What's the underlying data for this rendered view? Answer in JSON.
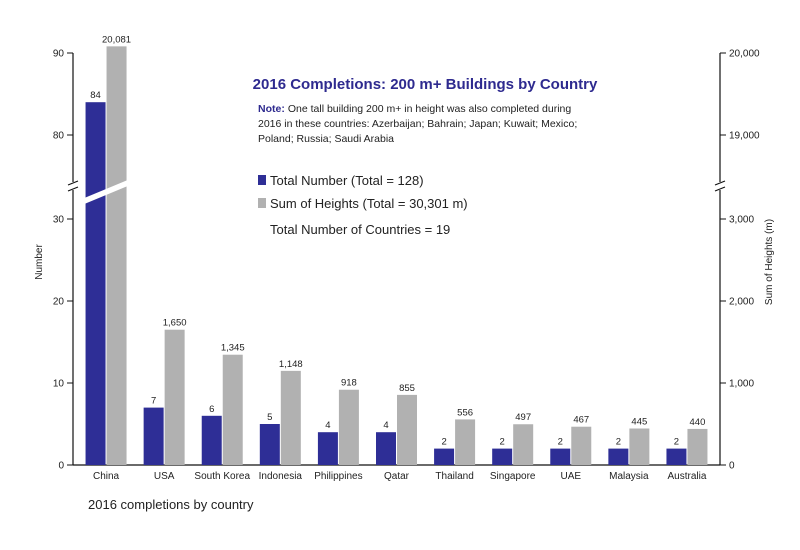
{
  "chart_data": {
    "type": "bar",
    "title": "2016 Completions: 200 m+ Buildings by Country",
    "note_label": "Note:",
    "note_lines": [
      "One tall building 200 m+ in height was also completed during",
      "2016 in these countries: Azerbaijan; Bahrain; Japan; Kuwait; Mexico;",
      "Poland; Russia; Saudi Arabia"
    ],
    "categories": [
      "China",
      "USA",
      "South Korea",
      "Indonesia",
      "Philippines",
      "Qatar",
      "Thailand",
      "Singapore",
      "UAE",
      "Malaysia",
      "Australia"
    ],
    "series": [
      {
        "name": "Total Number (Total = 128)",
        "color": "#2e2e96",
        "axis": "left",
        "values": [
          84,
          7,
          6,
          5,
          4,
          4,
          2,
          2,
          2,
          2,
          2
        ],
        "labels": [
          "84",
          "7",
          "6",
          "5",
          "4",
          "4",
          "2",
          "2",
          "2",
          "2",
          "2"
        ]
      },
      {
        "name": "Sum of Heights (Total = 30,301 m)",
        "color": "#b1b1b1",
        "axis": "right",
        "values": [
          20081,
          1650,
          1345,
          1148,
          918,
          855,
          556,
          497,
          467,
          445,
          440
        ],
        "labels": [
          "20,081",
          "1,650",
          "1,345",
          "1,148",
          "918",
          "855",
          "556",
          "497",
          "467",
          "445",
          "440"
        ]
      }
    ],
    "legend_extra": "Total Number of Countries = 19",
    "ylabel_left": "Number",
    "ylabel_right": "Sum of Heights (m)",
    "xlabel": "2016 completions by country",
    "y_left_ticks_lower": [
      0,
      10,
      20,
      30
    ],
    "y_left_ticks_upper": [
      80,
      90
    ],
    "y_left_lower_range": [
      0,
      35
    ],
    "y_left_upper_range": [
      75,
      90
    ],
    "y_right_ticks_lower": [
      0,
      1000,
      2000,
      3000
    ],
    "y_right_tick_labels_lower": [
      "0",
      "1,000",
      "2,000",
      "3,000"
    ],
    "y_right_ticks_upper": [
      19000,
      20000
    ],
    "y_right_tick_labels_upper": [
      "19,000",
      "20,000"
    ],
    "y_right_lower_range": [
      0,
      3500
    ],
    "y_right_upper_range": [
      18500,
      20000
    ],
    "axis_break": true
  }
}
